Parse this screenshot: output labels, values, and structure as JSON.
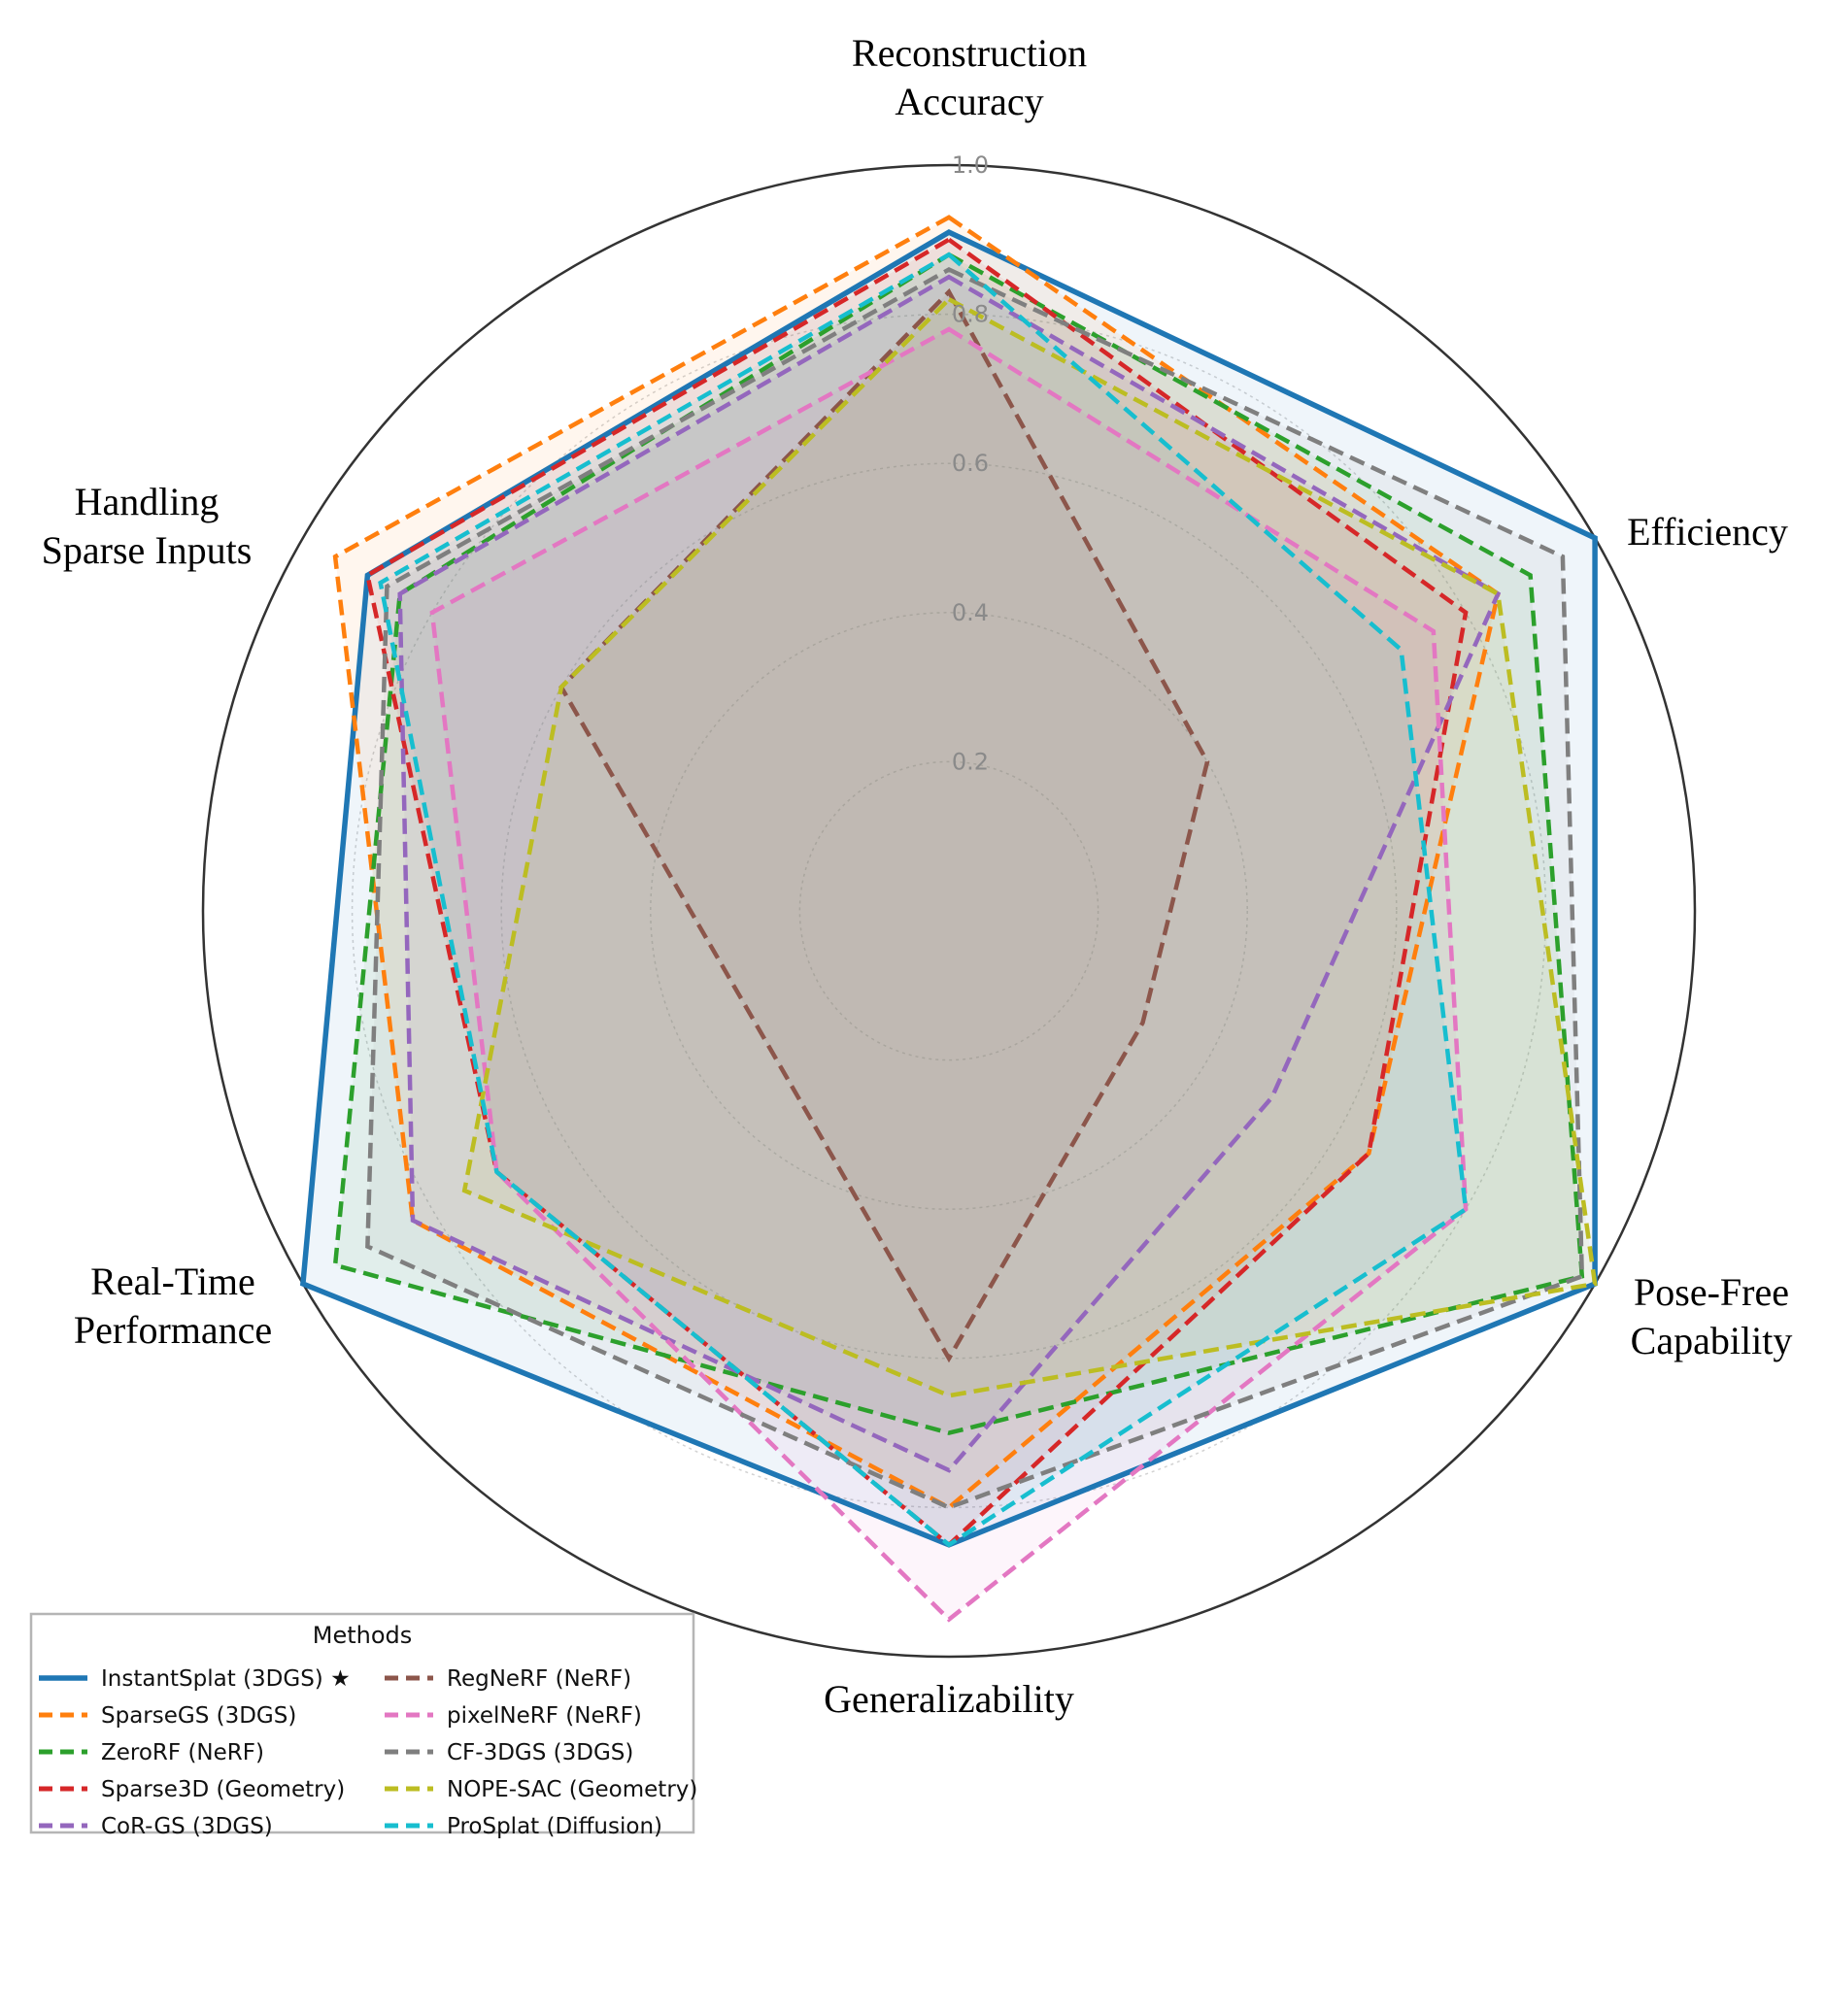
{
  "chart_data": {
    "type": "radar",
    "axes": [
      [
        "Reconstruction",
        "Accuracy"
      ],
      [
        "Efficiency"
      ],
      [
        "Pose-Free",
        "Capability"
      ],
      [
        "Generalizability"
      ],
      [
        "Real-Time",
        "Performance"
      ],
      [
        "Handling",
        "Sparse Inputs"
      ]
    ],
    "rlim": [
      0,
      1.0
    ],
    "ticks": [
      "0.2",
      "0.4",
      "0.6",
      "0.8",
      "1.0"
    ],
    "tick_values": [
      0.2,
      0.4,
      0.6,
      0.8,
      1.0
    ],
    "grid": true,
    "legend": {
      "title": "Methods",
      "placement": "lower-left",
      "columns": 2
    },
    "series": [
      {
        "name": "InstantSplat (3DGS) ★",
        "color": "#1f77b4",
        "style": "solid",
        "values": [
          0.91,
          1.0,
          1.0,
          0.85,
          1.0,
          0.9
        ]
      },
      {
        "name": "SparseGS (3DGS)",
        "color": "#ff7f0e",
        "style": "dashed",
        "values": [
          0.93,
          0.85,
          0.65,
          0.8,
          0.83,
          0.95
        ]
      },
      {
        "name": "ZeroRF (NeRF)",
        "color": "#2ca02c",
        "style": "dashed",
        "values": [
          0.88,
          0.9,
          0.98,
          0.7,
          0.95,
          0.85
        ]
      },
      {
        "name": "Sparse3D (Geometry)",
        "color": "#d62728",
        "style": "dashed",
        "values": [
          0.9,
          0.8,
          0.65,
          0.85,
          0.7,
          0.9
        ]
      },
      {
        "name": "CoR-GS (3DGS)",
        "color": "#9467bd",
        "style": "dashed",
        "values": [
          0.85,
          0.85,
          0.5,
          0.75,
          0.83,
          0.85
        ]
      },
      {
        "name": "RegNeRF (NeRF)",
        "color": "#8c564b",
        "style": "dashed",
        "values": [
          0.83,
          0.4,
          0.3,
          0.6,
          0.3,
          0.6
        ]
      },
      {
        "name": "pixelNeRF (NeRF)",
        "color": "#e377c2",
        "style": "dashed",
        "values": [
          0.78,
          0.75,
          0.8,
          0.95,
          0.7,
          0.8
        ]
      },
      {
        "name": "CF-3DGS (3DGS)",
        "color": "#7f7f7f",
        "style": "dashed",
        "values": [
          0.86,
          0.95,
          0.98,
          0.8,
          0.9,
          0.87
        ]
      },
      {
        "name": "NOPE-SAC (Geometry)",
        "color": "#bcbd22",
        "style": "dashed",
        "values": [
          0.82,
          0.85,
          1.0,
          0.65,
          0.75,
          0.6
        ]
      },
      {
        "name": "ProSplat (Diffusion)",
        "color": "#17becf",
        "style": "dashed",
        "values": [
          0.88,
          0.7,
          0.8,
          0.85,
          0.7,
          0.88
        ]
      }
    ]
  }
}
